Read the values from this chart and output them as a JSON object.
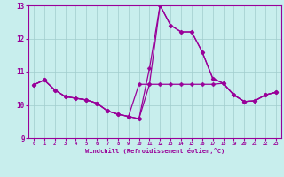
{
  "xlabel": "Windchill (Refroidissement éolien,°C)",
  "background_color": "#c8eeed",
  "grid_color": "#a0cccc",
  "line_color": "#990099",
  "hours": [
    0,
    1,
    2,
    3,
    4,
    5,
    6,
    7,
    8,
    9,
    10,
    11,
    12,
    13,
    14,
    15,
    16,
    17,
    18,
    19,
    20,
    21,
    22,
    23
  ],
  "line1": [
    10.6,
    10.75,
    10.45,
    10.25,
    10.2,
    10.15,
    10.05,
    9.82,
    9.72,
    9.65,
    9.58,
    11.1,
    13.0,
    12.4,
    12.2,
    12.2,
    11.6,
    10.8,
    10.65,
    10.3,
    10.1,
    10.12,
    10.3,
    10.38
  ],
  "line2": [
    10.6,
    10.75,
    10.45,
    10.25,
    10.2,
    10.15,
    10.05,
    9.82,
    9.72,
    9.65,
    10.62,
    10.62,
    10.62,
    10.62,
    10.62,
    10.62,
    10.62,
    10.62,
    10.65,
    10.3,
    10.1,
    10.12,
    10.3,
    10.38
  ],
  "line3": [
    10.6,
    10.75,
    10.45,
    10.25,
    10.2,
    10.15,
    10.05,
    9.82,
    9.72,
    9.65,
    9.58,
    10.62,
    13.0,
    12.4,
    12.2,
    12.2,
    11.6,
    10.8,
    10.65,
    10.3,
    10.1,
    10.12,
    10.3,
    10.38
  ],
  "ylim": [
    9,
    13
  ],
  "xlim_min": -0.5,
  "xlim_max": 23.5,
  "yticks": [
    9,
    10,
    11,
    12,
    13
  ],
  "xticks": [
    0,
    1,
    2,
    3,
    4,
    5,
    6,
    7,
    8,
    9,
    10,
    11,
    12,
    13,
    14,
    15,
    16,
    17,
    18,
    19,
    20,
    21,
    22,
    23
  ],
  "marker_size": 2.5,
  "line_width": 0.9
}
